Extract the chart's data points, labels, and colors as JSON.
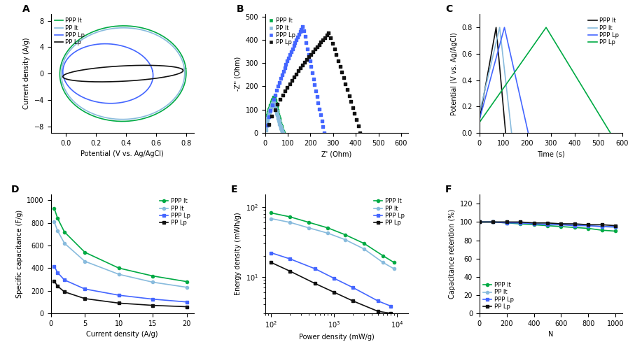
{
  "colors": {
    "PPP_It": "#00AA44",
    "PP_It": "#88BBDD",
    "PPP_Lp": "#4466FF",
    "PP_Lp": "#111111"
  },
  "panel_A": {
    "title": "A",
    "xlabel": "Potential (V vs. Ag/AgCl)",
    "ylabel": "Current density (A/g)",
    "xlim": [
      -0.1,
      0.85
    ],
    "ylim": [
      -9,
      9
    ],
    "xticks": [
      0.0,
      0.2,
      0.4,
      0.6,
      0.8
    ],
    "yticks": [
      -8,
      -4,
      0,
      4,
      8
    ]
  },
  "panel_B": {
    "title": "B",
    "xlabel": "Z' (Ohm)",
    "ylabel": "-Z'' (Ohm)",
    "xlim": [
      0,
      630
    ],
    "ylim": [
      0,
      510
    ],
    "xticks": [
      0,
      100,
      200,
      300,
      400,
      500,
      600
    ],
    "yticks": [
      0,
      100,
      200,
      300,
      400,
      500
    ]
  },
  "panel_C": {
    "title": "C",
    "xlabel": "Time (s)",
    "ylabel": "Potential (V vs. Ag/AgCl)",
    "xlim": [
      0,
      600
    ],
    "ylim": [
      0.0,
      0.9
    ],
    "xticks": [
      0,
      100,
      200,
      300,
      400,
      500,
      600
    ],
    "yticks": [
      0.0,
      0.2,
      0.4,
      0.6,
      0.8
    ]
  },
  "panel_D": {
    "title": "D",
    "xlabel": "Current density (A/g)",
    "ylabel": "Specific capacitance (F/g)",
    "xlim": [
      0,
      21
    ],
    "ylim": [
      0,
      1050
    ],
    "xticks": [
      0,
      5,
      10,
      15,
      20
    ],
    "yticks": [
      0,
      200,
      400,
      600,
      800,
      1000
    ]
  },
  "panel_E": {
    "title": "E",
    "xlabel": "Power density (mW/g)",
    "ylabel": "Energy density (mWh/g)",
    "xlim": [
      80,
      15000
    ],
    "ylim": [
      3,
      150
    ]
  },
  "panel_F": {
    "title": "F",
    "xlabel": "N",
    "ylabel": "Capacitance retention (%)",
    "xlim": [
      0,
      1050
    ],
    "ylim": [
      0,
      130
    ],
    "xticks": [
      0,
      200,
      400,
      600,
      800,
      1000
    ],
    "yticks": [
      0,
      20,
      40,
      60,
      80,
      100,
      120
    ]
  },
  "legend_labels": [
    "PPP It",
    "PP It",
    "PPP Lp",
    "PP Lp"
  ]
}
